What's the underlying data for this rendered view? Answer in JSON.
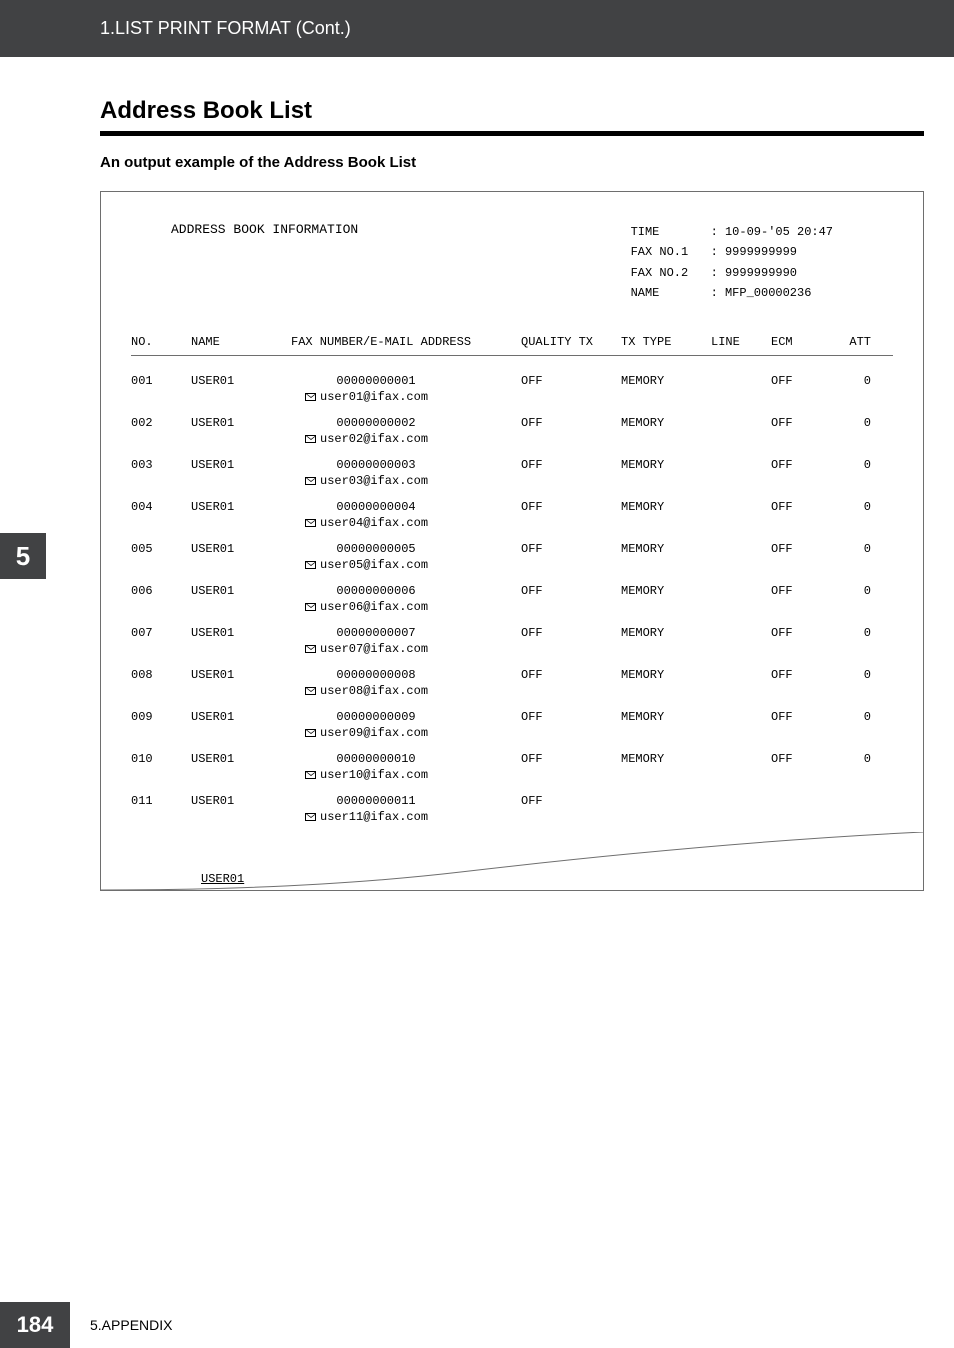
{
  "header": {
    "breadcrumb": "1.LIST PRINT FORMAT (Cont.)"
  },
  "section": {
    "title": "Address Book List",
    "subtitle": "An output example of the Address Book List"
  },
  "report": {
    "title": "ADDRESS BOOK INFORMATION",
    "meta": [
      {
        "label": "TIME",
        "value": ": 10-09-'05 20:47"
      },
      {
        "label": "FAX NO.1",
        "value": ": 9999999999"
      },
      {
        "label": "FAX NO.2",
        "value": ": 9999999990"
      },
      {
        "label": "NAME",
        "value": ": MFP_00000236"
      }
    ],
    "columns": [
      "NO.",
      "NAME",
      "FAX NUMBER/E-MAIL ADDRESS",
      "QUALITY TX",
      "TX TYPE",
      "LINE",
      "ECM",
      "ATT"
    ],
    "rows": [
      {
        "no": "001",
        "name": "USER01",
        "fax": "00000000001",
        "email": "user01@ifax.com",
        "qtx": "OFF",
        "txtype": "MEMORY",
        "line": "",
        "ecm": "OFF",
        "att": "0"
      },
      {
        "no": "002",
        "name": "USER01",
        "fax": "00000000002",
        "email": "user02@ifax.com",
        "qtx": "OFF",
        "txtype": "MEMORY",
        "line": "",
        "ecm": "OFF",
        "att": "0"
      },
      {
        "no": "003",
        "name": "USER01",
        "fax": "00000000003",
        "email": "user03@ifax.com",
        "qtx": "OFF",
        "txtype": "MEMORY",
        "line": "",
        "ecm": "OFF",
        "att": "0"
      },
      {
        "no": "004",
        "name": "USER01",
        "fax": "00000000004",
        "email": "user04@ifax.com",
        "qtx": "OFF",
        "txtype": "MEMORY",
        "line": "",
        "ecm": "OFF",
        "att": "0"
      },
      {
        "no": "005",
        "name": "USER01",
        "fax": "00000000005",
        "email": "user05@ifax.com",
        "qtx": "OFF",
        "txtype": "MEMORY",
        "line": "",
        "ecm": "OFF",
        "att": "0"
      },
      {
        "no": "006",
        "name": "USER01",
        "fax": "00000000006",
        "email": "user06@ifax.com",
        "qtx": "OFF",
        "txtype": "MEMORY",
        "line": "",
        "ecm": "OFF",
        "att": "0"
      },
      {
        "no": "007",
        "name": "USER01",
        "fax": "00000000007",
        "email": "user07@ifax.com",
        "qtx": "OFF",
        "txtype": "MEMORY",
        "line": "",
        "ecm": "OFF",
        "att": "0"
      },
      {
        "no": "008",
        "name": "USER01",
        "fax": "00000000008",
        "email": "user08@ifax.com",
        "qtx": "OFF",
        "txtype": "MEMORY",
        "line": "",
        "ecm": "OFF",
        "att": "0"
      },
      {
        "no": "009",
        "name": "USER01",
        "fax": "00000000009",
        "email": "user09@ifax.com",
        "qtx": "OFF",
        "txtype": "MEMORY",
        "line": "",
        "ecm": "OFF",
        "att": "0"
      },
      {
        "no": "010",
        "name": "USER01",
        "fax": "00000000010",
        "email": "user10@ifax.com",
        "qtx": "OFF",
        "txtype": "MEMORY",
        "line": "",
        "ecm": "OFF",
        "att": "0"
      },
      {
        "no": "011",
        "name": "USER01",
        "fax": "00000000011",
        "email": "user11@ifax.com",
        "qtx": "OFF",
        "txtype": "",
        "line": "",
        "ecm": "",
        "att": ""
      }
    ],
    "cutoff_name": "USER01"
  },
  "side_tab": "5",
  "footer": {
    "page": "184",
    "label": "5.APPENDIX"
  }
}
